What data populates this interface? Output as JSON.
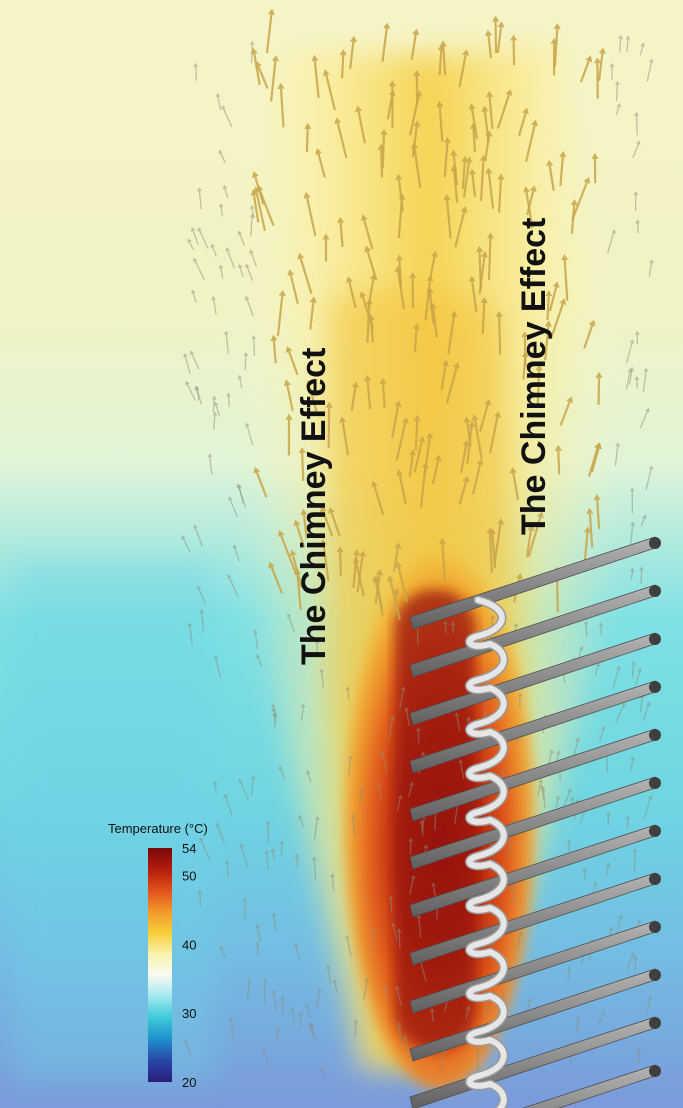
{
  "annotations": {
    "left_label": "The Chimney Effect",
    "right_label": "The Chimney Effect"
  },
  "colorbar": {
    "title": "Temperature (°C)",
    "min": 20,
    "max": 54,
    "ticks": [
      "54",
      "50",
      "40",
      "30",
      "20"
    ],
    "colors": [
      "#7a0a0a",
      "#b31c0c",
      "#e0531a",
      "#f29a2a",
      "#f7cf3a",
      "#fbf3b0",
      "#f7fbf4",
      "#9fe8ee",
      "#3cc9d8",
      "#1f8fcb",
      "#2946a8",
      "#2a1d7a"
    ]
  },
  "colors": {
    "background_top": "#f6f3b9",
    "background_mid": "#7fe0e6",
    "background_bottom": "#6fa0dc",
    "hot_core": "#8e0f12",
    "arrow_warm": "#c9a64a",
    "arrow_neutral": "#8c8f7a",
    "fin": "#8f8f8f",
    "tube": "#e6e6e6"
  }
}
